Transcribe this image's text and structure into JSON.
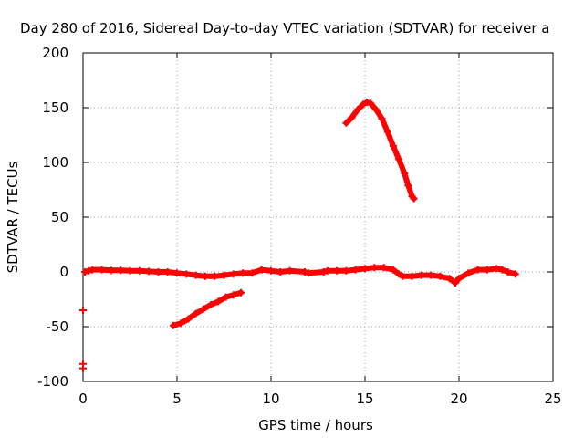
{
  "chart_data": {
    "type": "scatter",
    "title": "Day 280 of 2016, Sidereal Day-to-day VTEC variation (SDTVAR) for receiver a",
    "xlabel": "GPS time / hours",
    "ylabel": "SDTVAR / TECUs",
    "xlim": [
      0,
      25
    ],
    "ylim": [
      -100,
      200
    ],
    "xticks": [
      "0",
      "5",
      "10",
      "15",
      "20",
      "25"
    ],
    "yticks": [
      "-100",
      "-50",
      "0",
      "50",
      "100",
      "150",
      "200"
    ],
    "grid": true,
    "legend": "none",
    "color": "#ff0000",
    "series": [
      {
        "values": [
          [
            0.1,
            0
          ],
          [
            0.3,
            1
          ],
          [
            0.5,
            2
          ],
          [
            1,
            2
          ],
          [
            1.5,
            1.5
          ],
          [
            2,
            1.5
          ],
          [
            2.5,
            1
          ],
          [
            3,
            1
          ],
          [
            3.5,
            0.5
          ],
          [
            4,
            0
          ],
          [
            4.5,
            0
          ],
          [
            5,
            -1
          ],
          [
            5.5,
            -2
          ],
          [
            6,
            -3
          ],
          [
            6.5,
            -4
          ],
          [
            7,
            -4
          ],
          [
            7.5,
            -3
          ],
          [
            8,
            -2
          ],
          [
            8.5,
            -1
          ],
          [
            9,
            -1
          ],
          [
            9.5,
            2
          ],
          [
            10,
            1
          ],
          [
            10.5,
            0
          ],
          [
            11,
            1
          ],
          [
            11.8,
            0
          ],
          [
            12,
            -1
          ],
          [
            12.8,
            0
          ],
          [
            13,
            1
          ],
          [
            13.5,
            1
          ],
          [
            14,
            1
          ],
          [
            14.5,
            2
          ],
          [
            15,
            3
          ],
          [
            15.5,
            4
          ],
          [
            16,
            4
          ],
          [
            16.5,
            2
          ],
          [
            16.8,
            -2
          ],
          [
            17,
            -4
          ],
          [
            17.5,
            -4
          ],
          [
            18,
            -3
          ],
          [
            18.5,
            -3
          ],
          [
            19,
            -4
          ],
          [
            19.5,
            -6
          ],
          [
            19.8,
            -10
          ],
          [
            20,
            -6
          ],
          [
            20.5,
            -1
          ],
          [
            21,
            2
          ],
          [
            21.5,
            2
          ],
          [
            22,
            3
          ],
          [
            22.3,
            2
          ],
          [
            22.6,
            0
          ],
          [
            23,
            -2
          ]
        ]
      },
      {
        "values": [
          [
            4.8,
            -49
          ],
          [
            5.2,
            -47
          ],
          [
            5.6,
            -43
          ],
          [
            6,
            -38
          ],
          [
            6.4,
            -34
          ],
          [
            6.8,
            -30
          ],
          [
            7.2,
            -27
          ],
          [
            7.6,
            -23
          ],
          [
            8,
            -21
          ],
          [
            8.4,
            -19
          ]
        ]
      },
      {
        "values": [
          [
            14,
            136
          ],
          [
            14.3,
            141
          ],
          [
            14.6,
            148
          ],
          [
            14.9,
            153
          ],
          [
            15.1,
            155
          ],
          [
            15.3,
            154
          ],
          [
            15.6,
            148
          ],
          [
            15.9,
            140
          ],
          [
            16.2,
            128
          ],
          [
            16.5,
            115
          ],
          [
            16.8,
            103
          ],
          [
            17.1,
            90
          ],
          [
            17.3,
            79
          ],
          [
            17.5,
            69
          ],
          [
            17.6,
            67
          ]
        ]
      },
      {
        "values": [
          [
            0,
            -35
          ],
          [
            0,
            -84
          ],
          [
            0,
            -88
          ]
        ]
      }
    ]
  }
}
